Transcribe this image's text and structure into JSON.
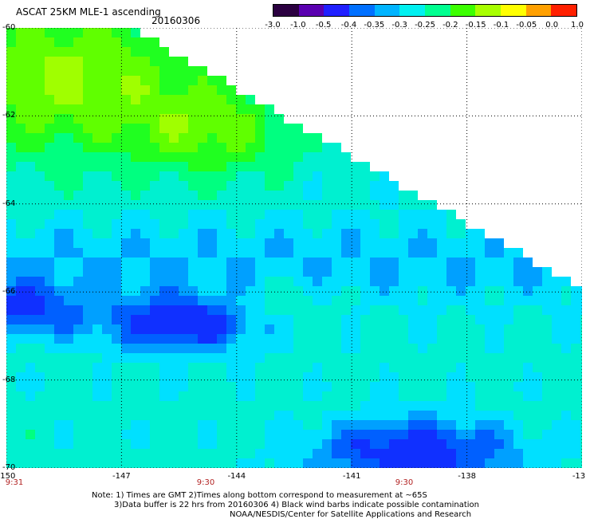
{
  "header": {
    "title": "ASCAT 25KM MLE-1 ascending",
    "date": "20160306"
  },
  "colorbar": {
    "ticks": [
      "-3.0",
      "-1.0",
      "-0.5",
      "-0.4",
      "-0.35",
      "-0.3",
      "-0.25",
      "-0.2",
      "-0.15",
      "-0.1",
      "-0.05",
      "0.0",
      "1.0"
    ],
    "colors": [
      "#2b0040",
      "#5a00b0",
      "#2020ff",
      "#0070ff",
      "#00b4ff",
      "#00f0f0",
      "#00ff90",
      "#3cff00",
      "#a8ff00",
      "#ffff00",
      "#ffa000",
      "#ff2000"
    ]
  },
  "map": {
    "lat_labels": [
      "-60",
      "-62",
      "-64",
      "-66",
      "-68",
      "-70"
    ],
    "lon_labels": [
      "-150",
      "-147",
      "-144",
      "-141",
      "-138",
      "-13"
    ],
    "time_labels": [
      "9:31",
      "9:30",
      "9:30"
    ],
    "lat_range": [
      -70,
      -60
    ],
    "lon_range": [
      -150,
      -135
    ],
    "grid": true
  },
  "notes": {
    "line1": "Note: 1) Times are GMT 2)Times along bottom correspond to measurement at ~65S",
    "line2": "3)Data buffer is 22 hrs from 20160306 4) Black wind barbs indicate possible contamination",
    "line3": "NOAA/NESDIS/Center for Satellite Applications and Research"
  }
}
